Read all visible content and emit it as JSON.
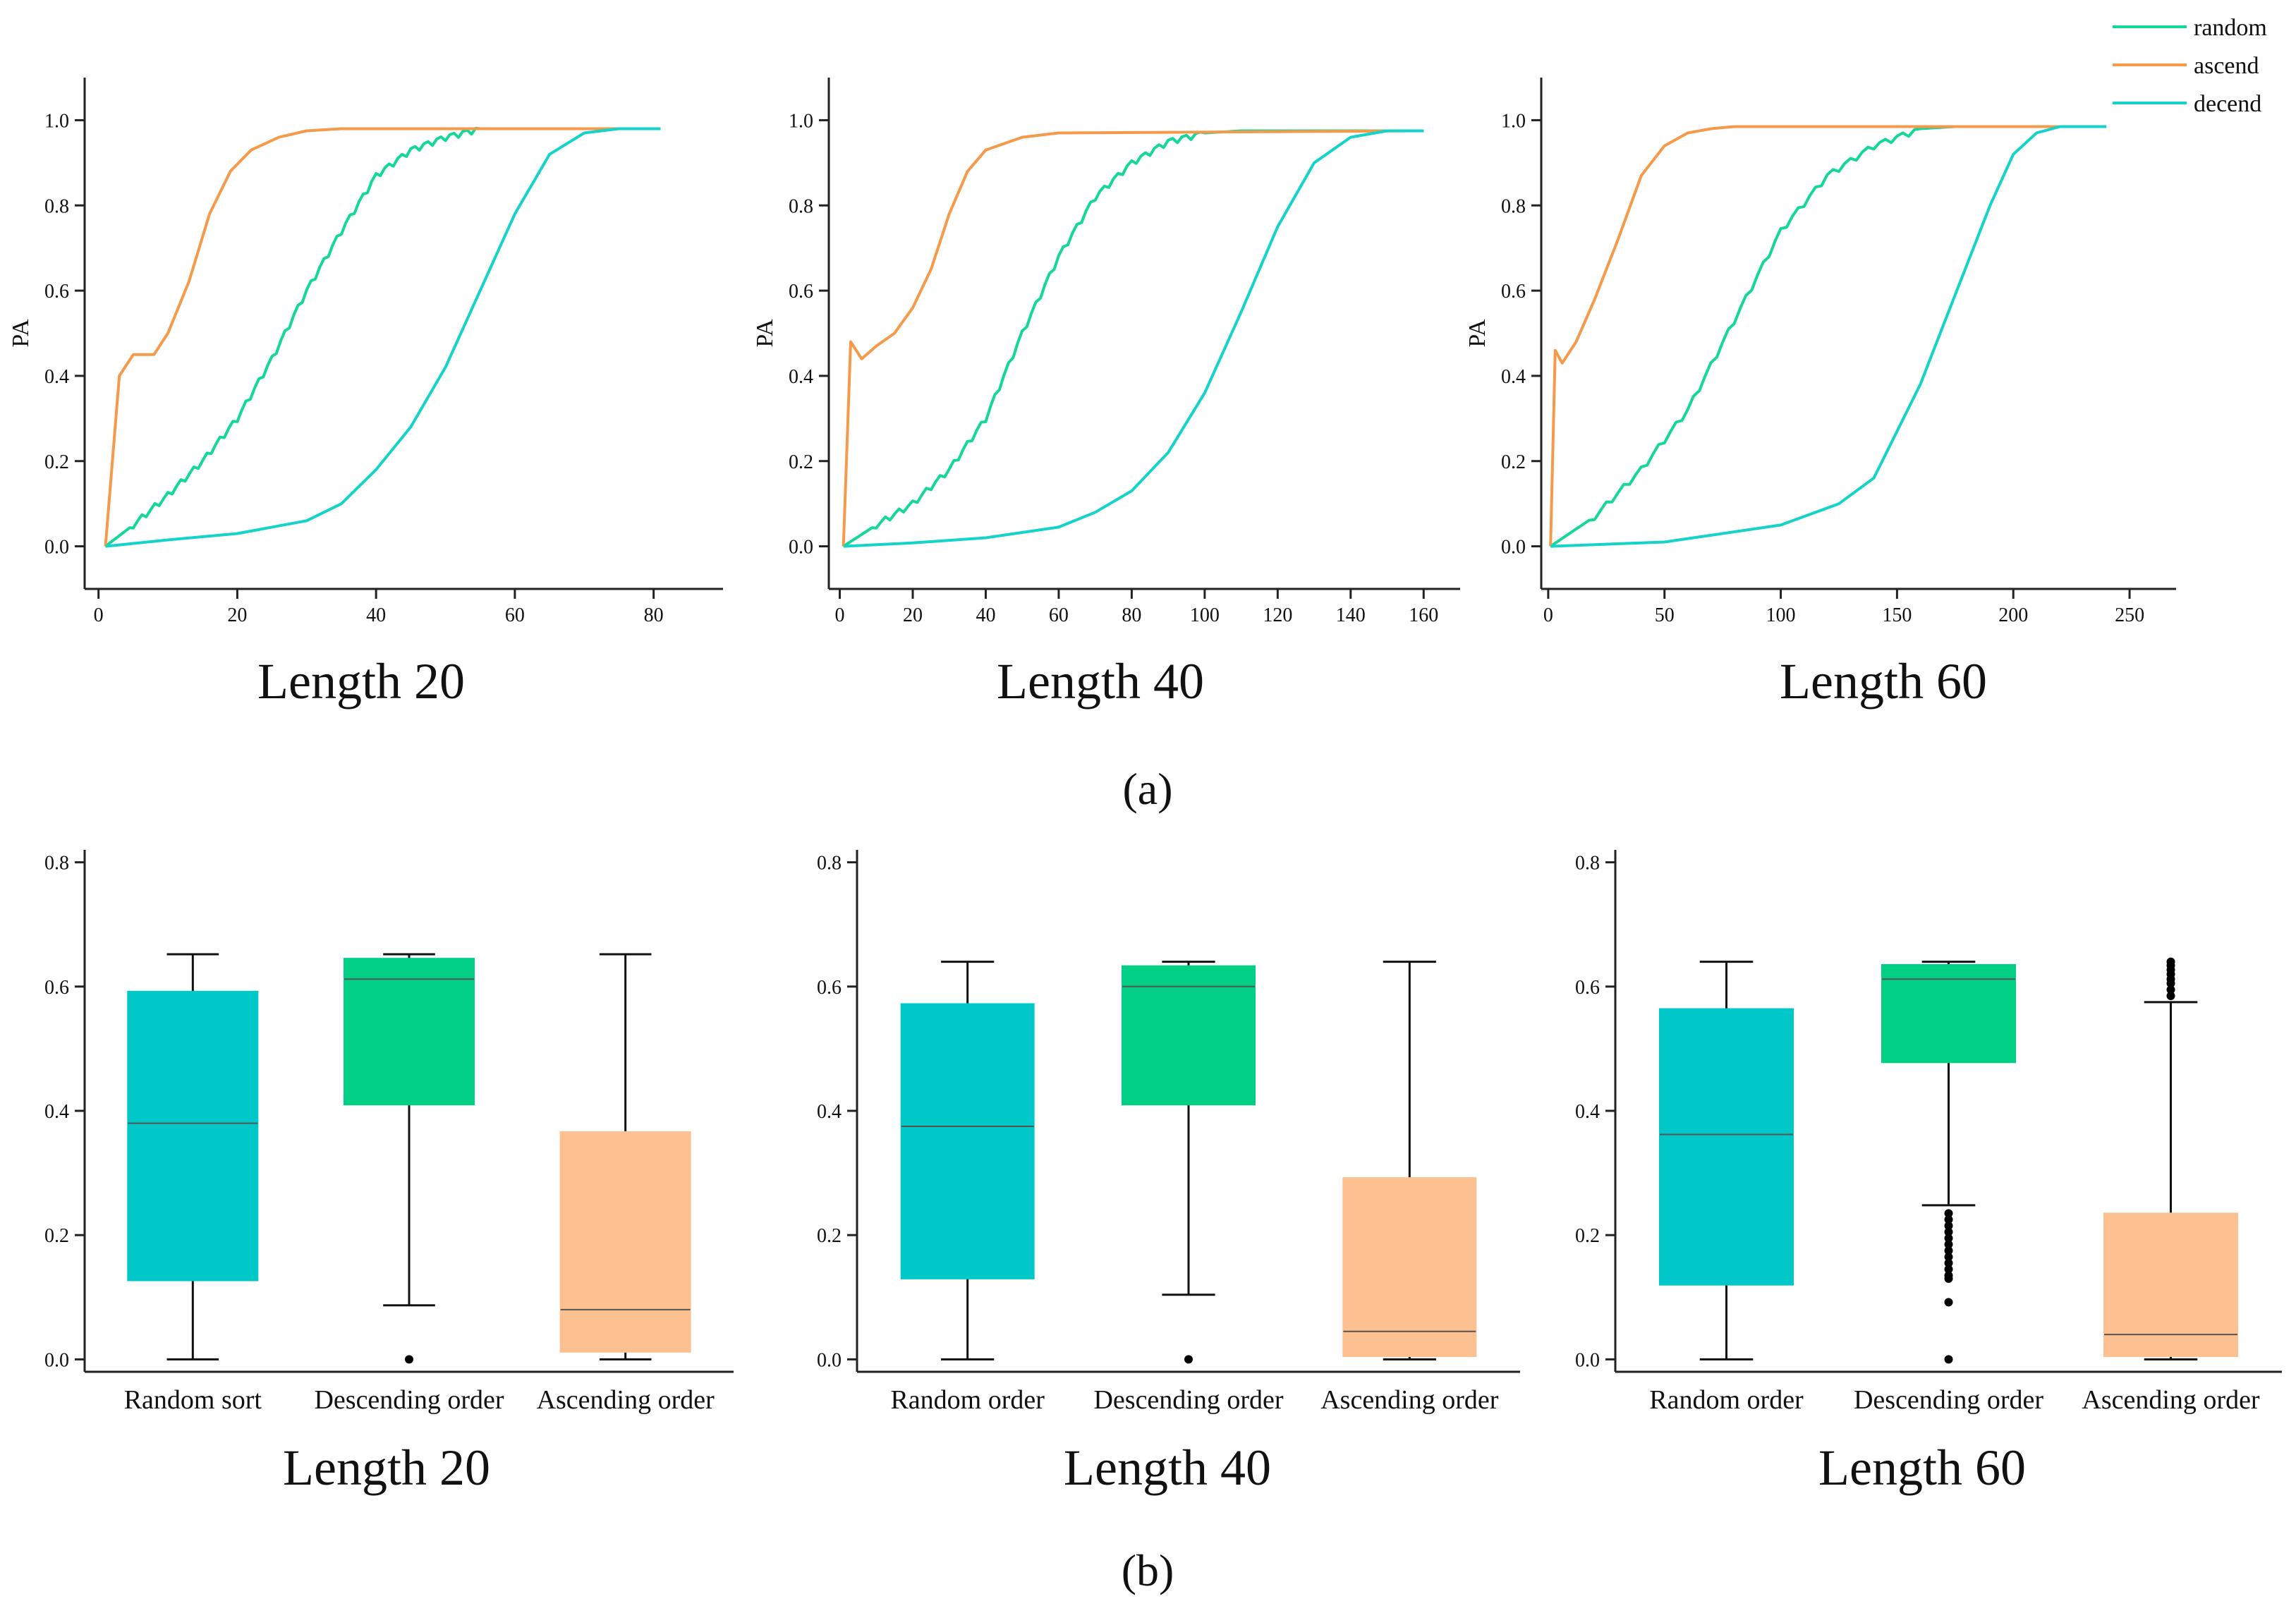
{
  "figure": {
    "panel_a_label": "(a)",
    "panel_b_label": "(b)",
    "colors": {
      "random": "#16d79a",
      "ascend": "#f59a4a",
      "decend": "#14d3c8",
      "box_random": "#00c8c8",
      "box_descending": "#00cf85",
      "box_ascending": "#fdc090"
    }
  },
  "chart_data": [
    {
      "type": "line",
      "id": "a1",
      "title": "Length 20",
      "xlabel": "",
      "ylabel": "PA",
      "xlim": [
        -2,
        90
      ],
      "ylim": [
        -0.1,
        1.1
      ],
      "xticks": [
        0,
        20,
        40,
        60,
        80
      ],
      "xtick_labels": [
        "0",
        "20",
        "40",
        "60",
        "80"
      ],
      "yticks": [
        0.0,
        0.2,
        0.4,
        0.6,
        0.8,
        1.0
      ],
      "ytick_labels": [
        "0.0",
        "0.2",
        "0.4",
        "0.6",
        "0.8",
        "1.0"
      ],
      "series": [
        {
          "name": "random",
          "color": "#16d79a",
          "x": [
            1,
            5,
            10,
            15,
            20,
            25,
            30,
            35,
            40,
            45,
            50,
            55,
            60,
            81
          ],
          "y": [
            0.0,
            0.05,
            0.12,
            0.2,
            0.3,
            0.44,
            0.6,
            0.74,
            0.87,
            0.93,
            0.96,
            0.98,
            0.98,
            0.98
          ]
        },
        {
          "name": "ascend",
          "color": "#f59a4a",
          "x": [
            1,
            3,
            5,
            8,
            10,
            13,
            16,
            19,
            22,
            26,
            30,
            35,
            81
          ],
          "y": [
            0.0,
            0.4,
            0.45,
            0.45,
            0.5,
            0.62,
            0.78,
            0.88,
            0.93,
            0.96,
            0.975,
            0.98,
            0.98
          ]
        },
        {
          "name": "decend",
          "color": "#14d3c8",
          "x": [
            1,
            10,
            20,
            30,
            35,
            40,
            45,
            50,
            55,
            60,
            65,
            70,
            75,
            81
          ],
          "y": [
            0.0,
            0.015,
            0.03,
            0.06,
            0.1,
            0.18,
            0.28,
            0.42,
            0.6,
            0.78,
            0.92,
            0.97,
            0.98,
            0.98
          ]
        }
      ]
    },
    {
      "type": "line",
      "id": "a2",
      "title": "Length 40",
      "xlabel": "",
      "ylabel": "PA",
      "xlim": [
        -3,
        170
      ],
      "ylim": [
        -0.1,
        1.1
      ],
      "xticks": [
        0,
        20,
        40,
        60,
        80,
        100,
        120,
        140,
        160
      ],
      "xtick_labels": [
        "0",
        "20",
        "40",
        "60",
        "80",
        "100",
        "120",
        "140",
        "160"
      ],
      "yticks": [
        0.0,
        0.2,
        0.4,
        0.6,
        0.8,
        1.0
      ],
      "ytick_labels": [
        "0.0",
        "0.2",
        "0.4",
        "0.6",
        "0.8",
        "1.0"
      ],
      "series": [
        {
          "name": "random",
          "color": "#16d79a",
          "x": [
            1,
            10,
            20,
            30,
            40,
            50,
            60,
            70,
            80,
            90,
            100,
            110,
            160
          ],
          "y": [
            0.0,
            0.05,
            0.1,
            0.18,
            0.3,
            0.5,
            0.68,
            0.82,
            0.9,
            0.95,
            0.97,
            0.975,
            0.975
          ]
        },
        {
          "name": "ascend",
          "color": "#f59a4a",
          "x": [
            1,
            3,
            6,
            10,
            15,
            20,
            25,
            30,
            35,
            40,
            50,
            60,
            160
          ],
          "y": [
            0.0,
            0.48,
            0.44,
            0.47,
            0.5,
            0.56,
            0.65,
            0.78,
            0.88,
            0.93,
            0.96,
            0.97,
            0.975
          ]
        },
        {
          "name": "decend",
          "color": "#14d3c8",
          "x": [
            1,
            20,
            40,
            60,
            70,
            80,
            90,
            100,
            110,
            120,
            130,
            140,
            150,
            160
          ],
          "y": [
            0.0,
            0.008,
            0.02,
            0.045,
            0.08,
            0.13,
            0.22,
            0.36,
            0.55,
            0.75,
            0.9,
            0.96,
            0.975,
            0.975
          ]
        }
      ]
    },
    {
      "type": "line",
      "id": "a3",
      "title": "Length 60",
      "xlabel": "",
      "ylabel": "PA",
      "xlim": [
        -3,
        270
      ],
      "ylim": [
        -0.1,
        1.1
      ],
      "xticks": [
        0,
        50,
        100,
        150,
        200,
        250
      ],
      "xtick_labels": [
        "0",
        "50",
        "100",
        "150",
        "200",
        "250"
      ],
      "yticks": [
        0.0,
        0.2,
        0.4,
        0.6,
        0.8,
        1.0
      ],
      "ytick_labels": [
        "0.0",
        "0.2",
        "0.4",
        "0.6",
        "0.8",
        "1.0"
      ],
      "series": [
        {
          "name": "random",
          "color": "#16d79a",
          "x": [
            1,
            20,
            40,
            60,
            80,
            100,
            120,
            140,
            160,
            175,
            240
          ],
          "y": [
            0.0,
            0.07,
            0.18,
            0.32,
            0.53,
            0.74,
            0.87,
            0.94,
            0.98,
            0.985,
            0.985
          ]
        },
        {
          "name": "ascend",
          "color": "#f59a4a",
          "x": [
            1,
            3,
            6,
            12,
            20,
            30,
            40,
            50,
            60,
            70,
            80,
            240
          ],
          "y": [
            0.0,
            0.46,
            0.43,
            0.48,
            0.58,
            0.72,
            0.87,
            0.94,
            0.97,
            0.98,
            0.985,
            0.985
          ]
        },
        {
          "name": "decend",
          "color": "#14d3c8",
          "x": [
            1,
            50,
            100,
            125,
            140,
            150,
            160,
            170,
            180,
            190,
            200,
            210,
            220,
            240
          ],
          "y": [
            0.0,
            0.01,
            0.05,
            0.1,
            0.16,
            0.27,
            0.38,
            0.52,
            0.66,
            0.8,
            0.92,
            0.97,
            0.985,
            0.985
          ]
        }
      ]
    },
    {
      "type": "box",
      "id": "b1",
      "title": "Length 20",
      "xlabel": "",
      "ylabel": "",
      "ylim": [
        -0.02,
        0.82
      ],
      "yticks": [
        0.0,
        0.2,
        0.4,
        0.6,
        0.8
      ],
      "ytick_labels": [
        "0.0",
        "0.2",
        "0.4",
        "0.6",
        "0.8"
      ],
      "categories": [
        "Random sort",
        "Descending order",
        "Ascending order"
      ],
      "boxes": [
        {
          "min": 0.0,
          "q1": 0.127,
          "median": 0.38,
          "q3": 0.592,
          "max": 0.652,
          "color": "#00c8c8",
          "outliers": []
        },
        {
          "min": 0.087,
          "q1": 0.41,
          "median": 0.612,
          "q3": 0.645,
          "max": 0.652,
          "color": "#00cf85",
          "outliers": [
            0.0
          ]
        },
        {
          "min": 0.0,
          "q1": 0.012,
          "median": 0.08,
          "q3": 0.366,
          "max": 0.652,
          "color": "#fdc090",
          "outliers": []
        }
      ]
    },
    {
      "type": "box",
      "id": "b2",
      "title": "Length 40",
      "xlabel": "",
      "ylabel": "",
      "ylim": [
        -0.02,
        0.82
      ],
      "yticks": [
        0.0,
        0.2,
        0.4,
        0.6,
        0.8
      ],
      "ytick_labels": [
        "0.0",
        "0.2",
        "0.4",
        "0.6",
        "0.8"
      ],
      "categories": [
        "Random order",
        "Descending order",
        "Ascending order"
      ],
      "boxes": [
        {
          "min": 0.0,
          "q1": 0.13,
          "median": 0.375,
          "q3": 0.572,
          "max": 0.64,
          "color": "#00c8c8",
          "outliers": []
        },
        {
          "min": 0.104,
          "q1": 0.41,
          "median": 0.6,
          "q3": 0.633,
          "max": 0.64,
          "color": "#00cf85",
          "outliers": [
            0.0
          ]
        },
        {
          "min": 0.0,
          "q1": 0.005,
          "median": 0.045,
          "q3": 0.292,
          "max": 0.64,
          "color": "#fdc090",
          "outliers": []
        }
      ]
    },
    {
      "type": "box",
      "id": "b3",
      "title": "Length 60",
      "xlabel": "",
      "ylabel": "",
      "ylim": [
        -0.02,
        0.82
      ],
      "yticks": [
        0.0,
        0.2,
        0.4,
        0.6,
        0.8
      ],
      "ytick_labels": [
        "0.0",
        "0.2",
        "0.4",
        "0.6",
        "0.8"
      ],
      "categories": [
        "Random order",
        "Descending order",
        "Ascending order"
      ],
      "boxes": [
        {
          "min": 0.0,
          "q1": 0.12,
          "median": 0.362,
          "q3": 0.564,
          "max": 0.64,
          "color": "#00c8c8",
          "outliers": []
        },
        {
          "min": 0.248,
          "q1": 0.478,
          "median": 0.612,
          "q3": 0.635,
          "max": 0.64,
          "color": "#00cf85",
          "outliers": [
            0.235,
            0.225,
            0.215,
            0.205,
            0.195,
            0.185,
            0.175,
            0.165,
            0.155,
            0.145,
            0.135,
            0.13,
            0.092,
            0.0
          ]
        },
        {
          "min": 0.0,
          "q1": 0.005,
          "median": 0.04,
          "q3": 0.235,
          "max": 0.575,
          "color": "#fdc090",
          "outliers": [
            0.585,
            0.595,
            0.605,
            0.612,
            0.62,
            0.627,
            0.634,
            0.64
          ]
        }
      ]
    }
  ],
  "legend": {
    "items": [
      "random",
      "ascend",
      "decend"
    ],
    "position": "top-right"
  }
}
